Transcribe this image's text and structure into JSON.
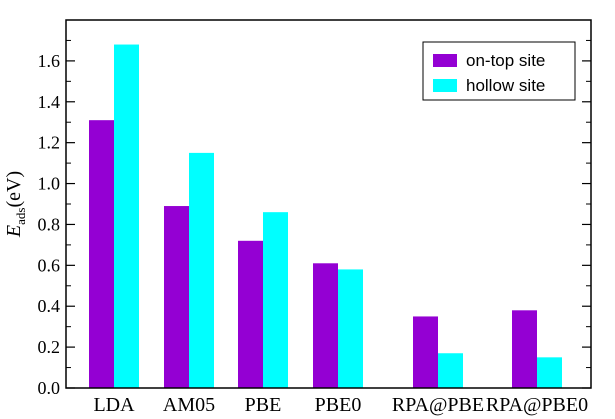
{
  "chart_data": {
    "type": "bar",
    "categories": [
      "LDA",
      "AM05",
      "PBE",
      "PBE0",
      "RPA@PBE",
      "RPA@PBE0"
    ],
    "series": [
      {
        "name": "on-top site",
        "color": "#9400D3",
        "values": [
          1.31,
          0.89,
          0.72,
          0.61,
          0.35,
          0.38
        ]
      },
      {
        "name": "hollow site",
        "color": "#00FFFF",
        "values": [
          1.68,
          1.15,
          0.86,
          0.58,
          0.17,
          0.15
        ]
      }
    ],
    "ylabel": {
      "symbol": "E",
      "subscript": "ads",
      "unit": "(eV)"
    },
    "xlabel": "",
    "ylim": [
      0.0,
      1.8
    ],
    "yticks": [
      "0.0",
      "0.2",
      "0.4",
      "0.6",
      "0.8",
      "1.0",
      "1.2",
      "1.4",
      "1.6"
    ],
    "legend_position": "top-right",
    "grid": false
  }
}
